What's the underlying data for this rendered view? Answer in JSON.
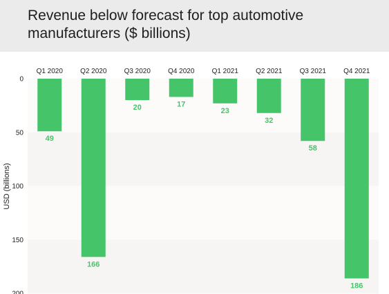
{
  "chart_data": {
    "type": "bar",
    "title": "Revenue below forecast for top automotive manufacturers ($ billions)",
    "ylabel": "USD (billions)",
    "xlabel": "",
    "categories": [
      "Q1 2020",
      "Q2 2020",
      "Q3 2020",
      "Q4 2020",
      "Q1 2021",
      "Q2 2021",
      "Q3 2021",
      "Q4 2021"
    ],
    "values": [
      49,
      166,
      20,
      17,
      23,
      32,
      58,
      186
    ],
    "value_labels": [
      "49",
      "166",
      "20",
      "17",
      "23",
      "32",
      "58",
      "186"
    ],
    "yticks": [
      "0",
      "50",
      "100",
      "150",
      "200"
    ],
    "ylim": [
      0,
      200
    ],
    "y_inverted": true,
    "x_axis_position": "top",
    "grid": "horizontal bands",
    "colors": {
      "bar": "#46c46a",
      "band_alt": "#f7f5f4",
      "band": "#fcfbfa",
      "title_bg": "#ebebeb"
    }
  }
}
